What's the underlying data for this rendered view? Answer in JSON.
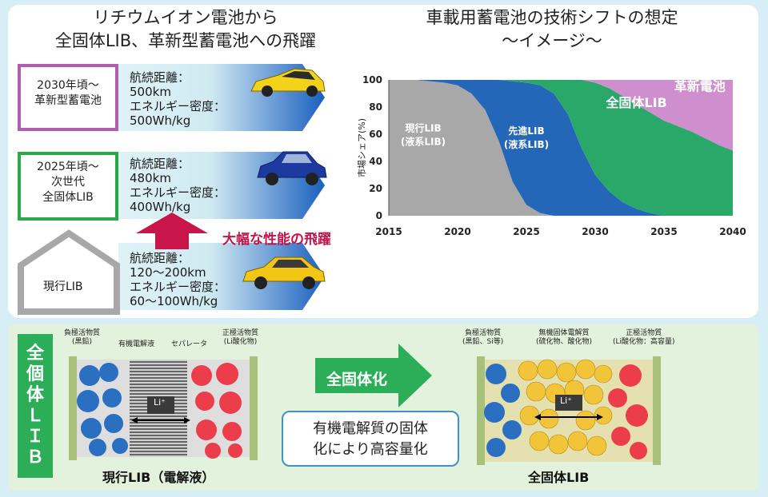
{
  "title_left": {
    "line1": "リチウムイオン電池から",
    "line2": "全固体LIB、革新型蓄電池への飛躍"
  },
  "title_right": {
    "line1": "車載用蓄電池の技術シフトの想定",
    "line2": "〜イメージ〜"
  },
  "stages": [
    {
      "label_line1": "2030年頃〜",
      "label_line2": "革新型蓄電池",
      "label_line3": "",
      "spec_line1": "航続距離：",
      "spec_line2": "500km",
      "spec_line3": "エネルギー密度：",
      "spec_line4": "500Wh/kg",
      "color": "#b05fb0"
    },
    {
      "label_line1": "2025年頃〜",
      "label_line2": "次世代",
      "label_line3": "全固体LIB",
      "spec_line1": "航続距離：",
      "spec_line2": "480km",
      "spec_line3": "エネルギー密度：",
      "spec_line4": "400Wh/kg",
      "color": "#2ba84a"
    },
    {
      "label_line1": "現行LIB",
      "label_line2": "",
      "label_line3": "",
      "spec_line1": "航続距離：",
      "spec_line2": "120〜200km",
      "spec_line3": "エネルギー密度：",
      "spec_line4": "60〜100Wh/kg",
      "color": "#a0a0a0"
    }
  ],
  "leap_label": "大幅な性能の飛躍",
  "chart_data": {
    "type": "area",
    "ylabel": "市場シェア(%)",
    "x": [
      2015,
      2017,
      2019,
      2020,
      2021,
      2022,
      2023,
      2024,
      2025,
      2026,
      2027,
      2028,
      2029,
      2030,
      2031,
      2032,
      2033,
      2034,
      2035,
      2036,
      2037,
      2038,
      2039,
      2040
    ],
    "xticks": [
      2015,
      2020,
      2025,
      2030,
      2035,
      2040
    ],
    "yticks": [
      0,
      20,
      40,
      60,
      80,
      100
    ],
    "ylim": [
      0,
      100
    ],
    "series": [
      {
        "name": "現行LIB(液系LIB)",
        "label_line1": "現行LIB",
        "label_line2": "(液系LIB)",
        "color": "#a8a8a8",
        "values": [
          100,
          100,
          98,
          96,
          90,
          78,
          55,
          25,
          8,
          2,
          0,
          0,
          0,
          0,
          0,
          0,
          0,
          0,
          0,
          0,
          0,
          0,
          0,
          0
        ]
      },
      {
        "name": "先進LIB(液系LIB)",
        "label_line1": "先進LIB",
        "label_line2": "(液系LIB)",
        "color": "#2467b8",
        "values": [
          0,
          0,
          2,
          4,
          10,
          22,
          45,
          74,
          90,
          94,
          90,
          75,
          50,
          30,
          18,
          10,
          5,
          2,
          0,
          0,
          0,
          0,
          0,
          0
        ]
      },
      {
        "name": "全固体LIB",
        "label_line1": "全固体LIB",
        "label_line2": "",
        "color": "#2aa86a",
        "values": [
          0,
          0,
          0,
          0,
          0,
          0,
          0,
          1,
          2,
          4,
          10,
          25,
          50,
          68,
          76,
          78,
          77,
          74,
          70,
          66,
          62,
          57,
          52,
          48
        ]
      },
      {
        "name": "革新電池",
        "label_line1": "革新電池",
        "label_line2": "",
        "color": "#cf8fcf",
        "values": [
          0,
          0,
          0,
          0,
          0,
          0,
          0,
          0,
          0,
          0,
          0,
          0,
          0,
          2,
          6,
          12,
          18,
          24,
          30,
          34,
          38,
          43,
          48,
          52
        ]
      }
    ]
  },
  "side_label": "全個体ＬＩＢ",
  "left_cell": {
    "anode": "負極活物質\n(黒鉛)",
    "electrolyte": "有機電解液",
    "separator": "セパレータ",
    "cathode": "正極活物質\n(Li酸化物)",
    "ion": "Li⁺",
    "caption": "現行LIB（電解液）"
  },
  "arrow_label": "全固体化",
  "bubble_line1": "有機電解質の固体",
  "bubble_line2": "化により高容量化",
  "right_cell": {
    "anode": "負極活物質\n(黒鉛、Si等)",
    "electrolyte": "無機固体電解質\n(硫化物、酸化物)",
    "cathode": "正極活物質\n(Li酸化物：高容量)",
    "ion": "Li⁺",
    "caption": "全固体LIB"
  }
}
